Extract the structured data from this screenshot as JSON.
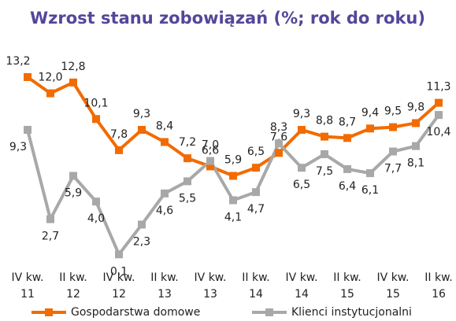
{
  "chart_data": {
    "type": "line",
    "title": "Wzrost stanu zobowiązań (%; rok do roku)",
    "categories": [
      "IV kw.\n11",
      null,
      "II kw.\n12",
      null,
      "IV kw.\n12",
      null,
      "II kw.\n13",
      null,
      "IV kw.\n13",
      null,
      "II kw.\n14",
      null,
      "IV kw.\n14",
      null,
      "II kw.\n15",
      null,
      "IV kw.\n15",
      null,
      "II kw.\n16"
    ],
    "series": [
      {
        "name": "Gospodarstwa domowe",
        "color": "#f26b00",
        "values": [
          13.2,
          12.0,
          12.8,
          10.1,
          7.8,
          9.3,
          8.4,
          7.2,
          6.6,
          5.9,
          6.5,
          7.6,
          9.3,
          8.8,
          8.7,
          9.4,
          9.5,
          9.8,
          11.3
        ],
        "value_labels": [
          "13,2",
          "12,0",
          "12,8",
          "10,1",
          "7,8",
          "9,3",
          "8,4",
          "7,2",
          "6,6",
          "5,9",
          "6,5",
          "7,6",
          "9,3",
          "8,8",
          "8,7",
          "9,4",
          "9,5",
          "9,8",
          "11,3"
        ]
      },
      {
        "name": "Klienci instytucjonalni",
        "color": "#a8a8a8",
        "values": [
          9.3,
          2.7,
          5.9,
          4.0,
          0.1,
          2.3,
          4.6,
          5.5,
          7.0,
          4.1,
          4.7,
          8.3,
          6.5,
          7.5,
          6.4,
          6.1,
          7.7,
          8.1,
          10.4
        ],
        "value_labels": [
          "9,3",
          "2,7",
          "5,9",
          "4,0",
          "0,1",
          "2,3",
          "4,6",
          "5,5",
          "7,0",
          "4,1",
          "4,7",
          "8,3",
          "6,5",
          "7,5",
          "6,4",
          "6,1",
          "7,7",
          "8,1",
          "10,4"
        ]
      }
    ]
  }
}
